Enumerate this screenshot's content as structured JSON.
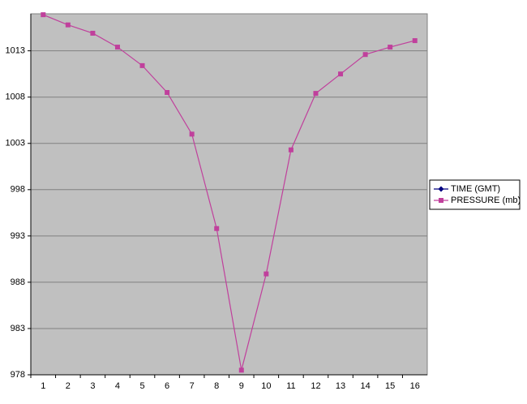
{
  "chart_data": {
    "type": "line",
    "categories": [
      "1",
      "2",
      "3",
      "4",
      "5",
      "6",
      "7",
      "8",
      "9",
      "10",
      "11",
      "12",
      "13",
      "14",
      "15",
      "16"
    ],
    "series": [
      {
        "name": "TIME (GMT)",
        "color": "#000080",
        "marker": "diamond",
        "values": [
          null,
          null,
          null,
          null,
          null,
          null,
          null,
          null,
          null,
          null,
          null,
          null,
          null,
          null,
          null,
          null
        ]
      },
      {
        "name": "PRESSURE (mb)",
        "color": "#c0409c",
        "marker": "square",
        "values": [
          1016.9,
          1015.8,
          1014.9,
          1013.4,
          1011.4,
          1008.5,
          1004,
          993.8,
          978.5,
          988.9,
          1002.3,
          1008.4,
          1010.5,
          1012.6,
          1013.4,
          1014.1
        ]
      }
    ],
    "ylim": [
      978,
      1017
    ],
    "yticks": [
      978,
      983,
      988,
      993,
      998,
      1003,
      1008,
      1013
    ],
    "grid": true,
    "legend": "right",
    "plot_background": "#c0c0c0"
  }
}
